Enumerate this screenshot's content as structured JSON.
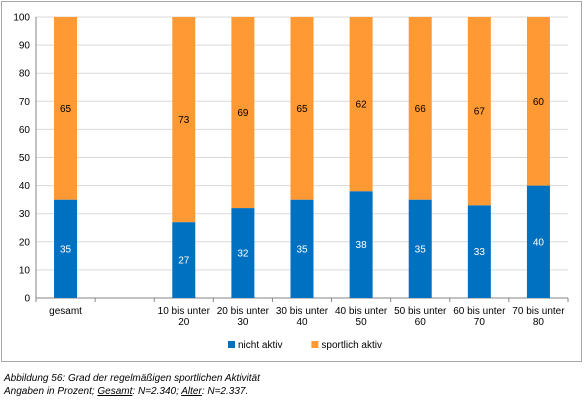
{
  "chart_data": {
    "type": "bar",
    "stacked": true,
    "categories": [
      "gesamt",
      "",
      "10 bis unter 20",
      "20 bis unter 30",
      "30 bis unter 40",
      "40 bis unter 50",
      "50 bis unter 60",
      "60 bis unter 70",
      "70 bis unter 80"
    ],
    "category_lines": [
      [
        "gesamt"
      ],
      [],
      [
        "10 bis unter",
        "20"
      ],
      [
        "20 bis unter",
        "30"
      ],
      [
        "30 bis unter",
        "40"
      ],
      [
        "40 bis unter",
        "50"
      ],
      [
        "50 bis unter",
        "60"
      ],
      [
        "60 bis unter",
        "70"
      ],
      [
        "70 bis unter",
        "80"
      ]
    ],
    "series": [
      {
        "name": "nicht aktiv",
        "color": "#0070c0",
        "values": [
          35,
          null,
          27,
          32,
          35,
          38,
          35,
          33,
          40
        ]
      },
      {
        "name": "sportlich aktiv",
        "color": "#ff9933",
        "values": [
          65,
          null,
          73,
          69,
          65,
          62,
          66,
          67,
          60
        ]
      }
    ],
    "ylim": [
      0,
      100
    ],
    "yticks": [
      0,
      10,
      20,
      30,
      40,
      50,
      60,
      70,
      80,
      90,
      100
    ],
    "grid": true,
    "legend": "bottom-center"
  },
  "caption": {
    "line1": "Abbildung 56: Grad der regelmäßigen sportlichen Aktivität",
    "line2_prefix": "Angaben in Prozent; ",
    "line2_gesamt_label": "Gesamt",
    "line2_gesamt_value": ": N=2.340; ",
    "line2_alter_label": "Alter",
    "line2_alter_value": ": N=2.337."
  }
}
